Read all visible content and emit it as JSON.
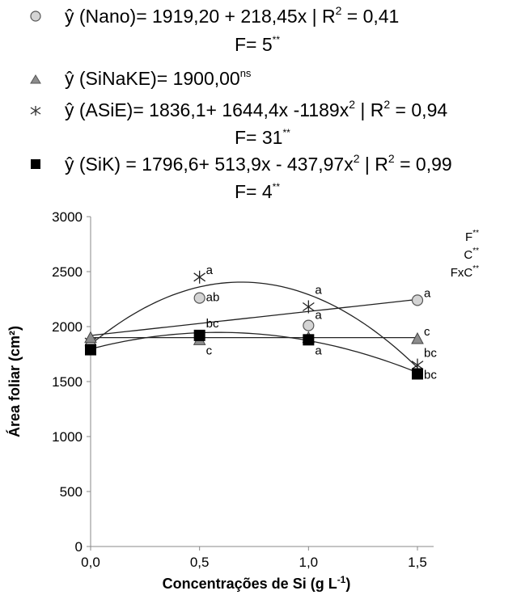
{
  "legend": [
    {
      "marker": "circle",
      "equation": "ŷ (Nano)= 1919,20 + 218,45x | R",
      "r2_sup": "2",
      "r2_value": " = 0,41",
      "f_text": "F= 5",
      "f_sup": "**"
    },
    {
      "marker": "triangle",
      "equation": "ŷ (SiNaKE)= 1900,00",
      "eq_sup": "ns"
    },
    {
      "marker": "star",
      "equation": "ŷ (ASiE)= 1836,1+ 1644,4x -1189x",
      "x2_sup": "2",
      "mid": " | R",
      "r2_sup": "2",
      "r2_value": " = 0,94",
      "f_text": "F= 31",
      "f_sup": "**"
    },
    {
      "marker": "square",
      "equation": "ŷ (SiK) = 1796,6+ 513,9x - 437,97x",
      "x2_sup": "2",
      "mid": " | R",
      "r2_sup": "2",
      "r2_value": " = 0,99",
      "f_text": "F= 4",
      "f_sup": "**"
    }
  ],
  "significance": [
    {
      "label": "F",
      "sup": "**"
    },
    {
      "label": "C",
      "sup": "**"
    },
    {
      "label": "FxC",
      "sup": "**"
    }
  ],
  "chart_data": {
    "type": "scatter",
    "xlabel_main": "Concentrações de Si (g L",
    "xlabel_sup": "-1",
    "xlabel_end": ")",
    "ylabel": "Área foliar (cm²)",
    "xlim": [
      0,
      1.5
    ],
    "ylim": [
      0,
      3000
    ],
    "x_ticks": [
      0,
      0.5,
      1.0,
      1.5
    ],
    "x_tick_labels": [
      "0,0",
      "0,5",
      "1,0",
      "1,5"
    ],
    "y_ticks": [
      0,
      500,
      1000,
      1500,
      2000,
      2500,
      3000
    ],
    "y_tick_labels": [
      "0",
      "500",
      "1000",
      "1500",
      "2000",
      "2500",
      "3000"
    ],
    "grid": false,
    "series": [
      {
        "name": "Nano",
        "marker": "circle",
        "fill": "#d4d4d4",
        "x": [
          0,
          0.5,
          1.0,
          1.5
        ],
        "y": [
          1820,
          2260,
          2010,
          2240
        ],
        "letters": [
          "",
          "ab",
          "a",
          "a"
        ],
        "fit": {
          "kind": "poly",
          "coeffs": [
            1919.2,
            218.45,
            0
          ]
        }
      },
      {
        "name": "SiNaKE",
        "marker": "triangle",
        "fill": "#8c8c8c",
        "x": [
          0,
          0.5,
          1.0,
          1.5
        ],
        "y": [
          1900,
          1880,
          1900,
          1890
        ],
        "letters": [
          "",
          "c",
          "",
          "c"
        ],
        "fit": {
          "kind": "poly",
          "coeffs": [
            1900.0,
            0,
            0
          ]
        }
      },
      {
        "name": "ASiE",
        "marker": "star",
        "fill": "none",
        "x": [
          0,
          0.5,
          1.0,
          1.5
        ],
        "y": [
          1860,
          2450,
          2180,
          1650
        ],
        "letters": [
          "",
          "a",
          "a",
          "bc"
        ],
        "fit": {
          "kind": "poly",
          "coeffs": [
            1836.1,
            1644.4,
            -1189
          ]
        }
      },
      {
        "name": "SiK",
        "marker": "square",
        "fill": "#000000",
        "x": [
          0,
          0.5,
          1.0,
          1.5
        ],
        "y": [
          1790,
          1920,
          1880,
          1570
        ],
        "letters": [
          "",
          "bc",
          "a",
          "bc"
        ],
        "fit": {
          "kind": "poly",
          "coeffs": [
            1796.6,
            513.9,
            -437.97
          ]
        }
      }
    ]
  }
}
